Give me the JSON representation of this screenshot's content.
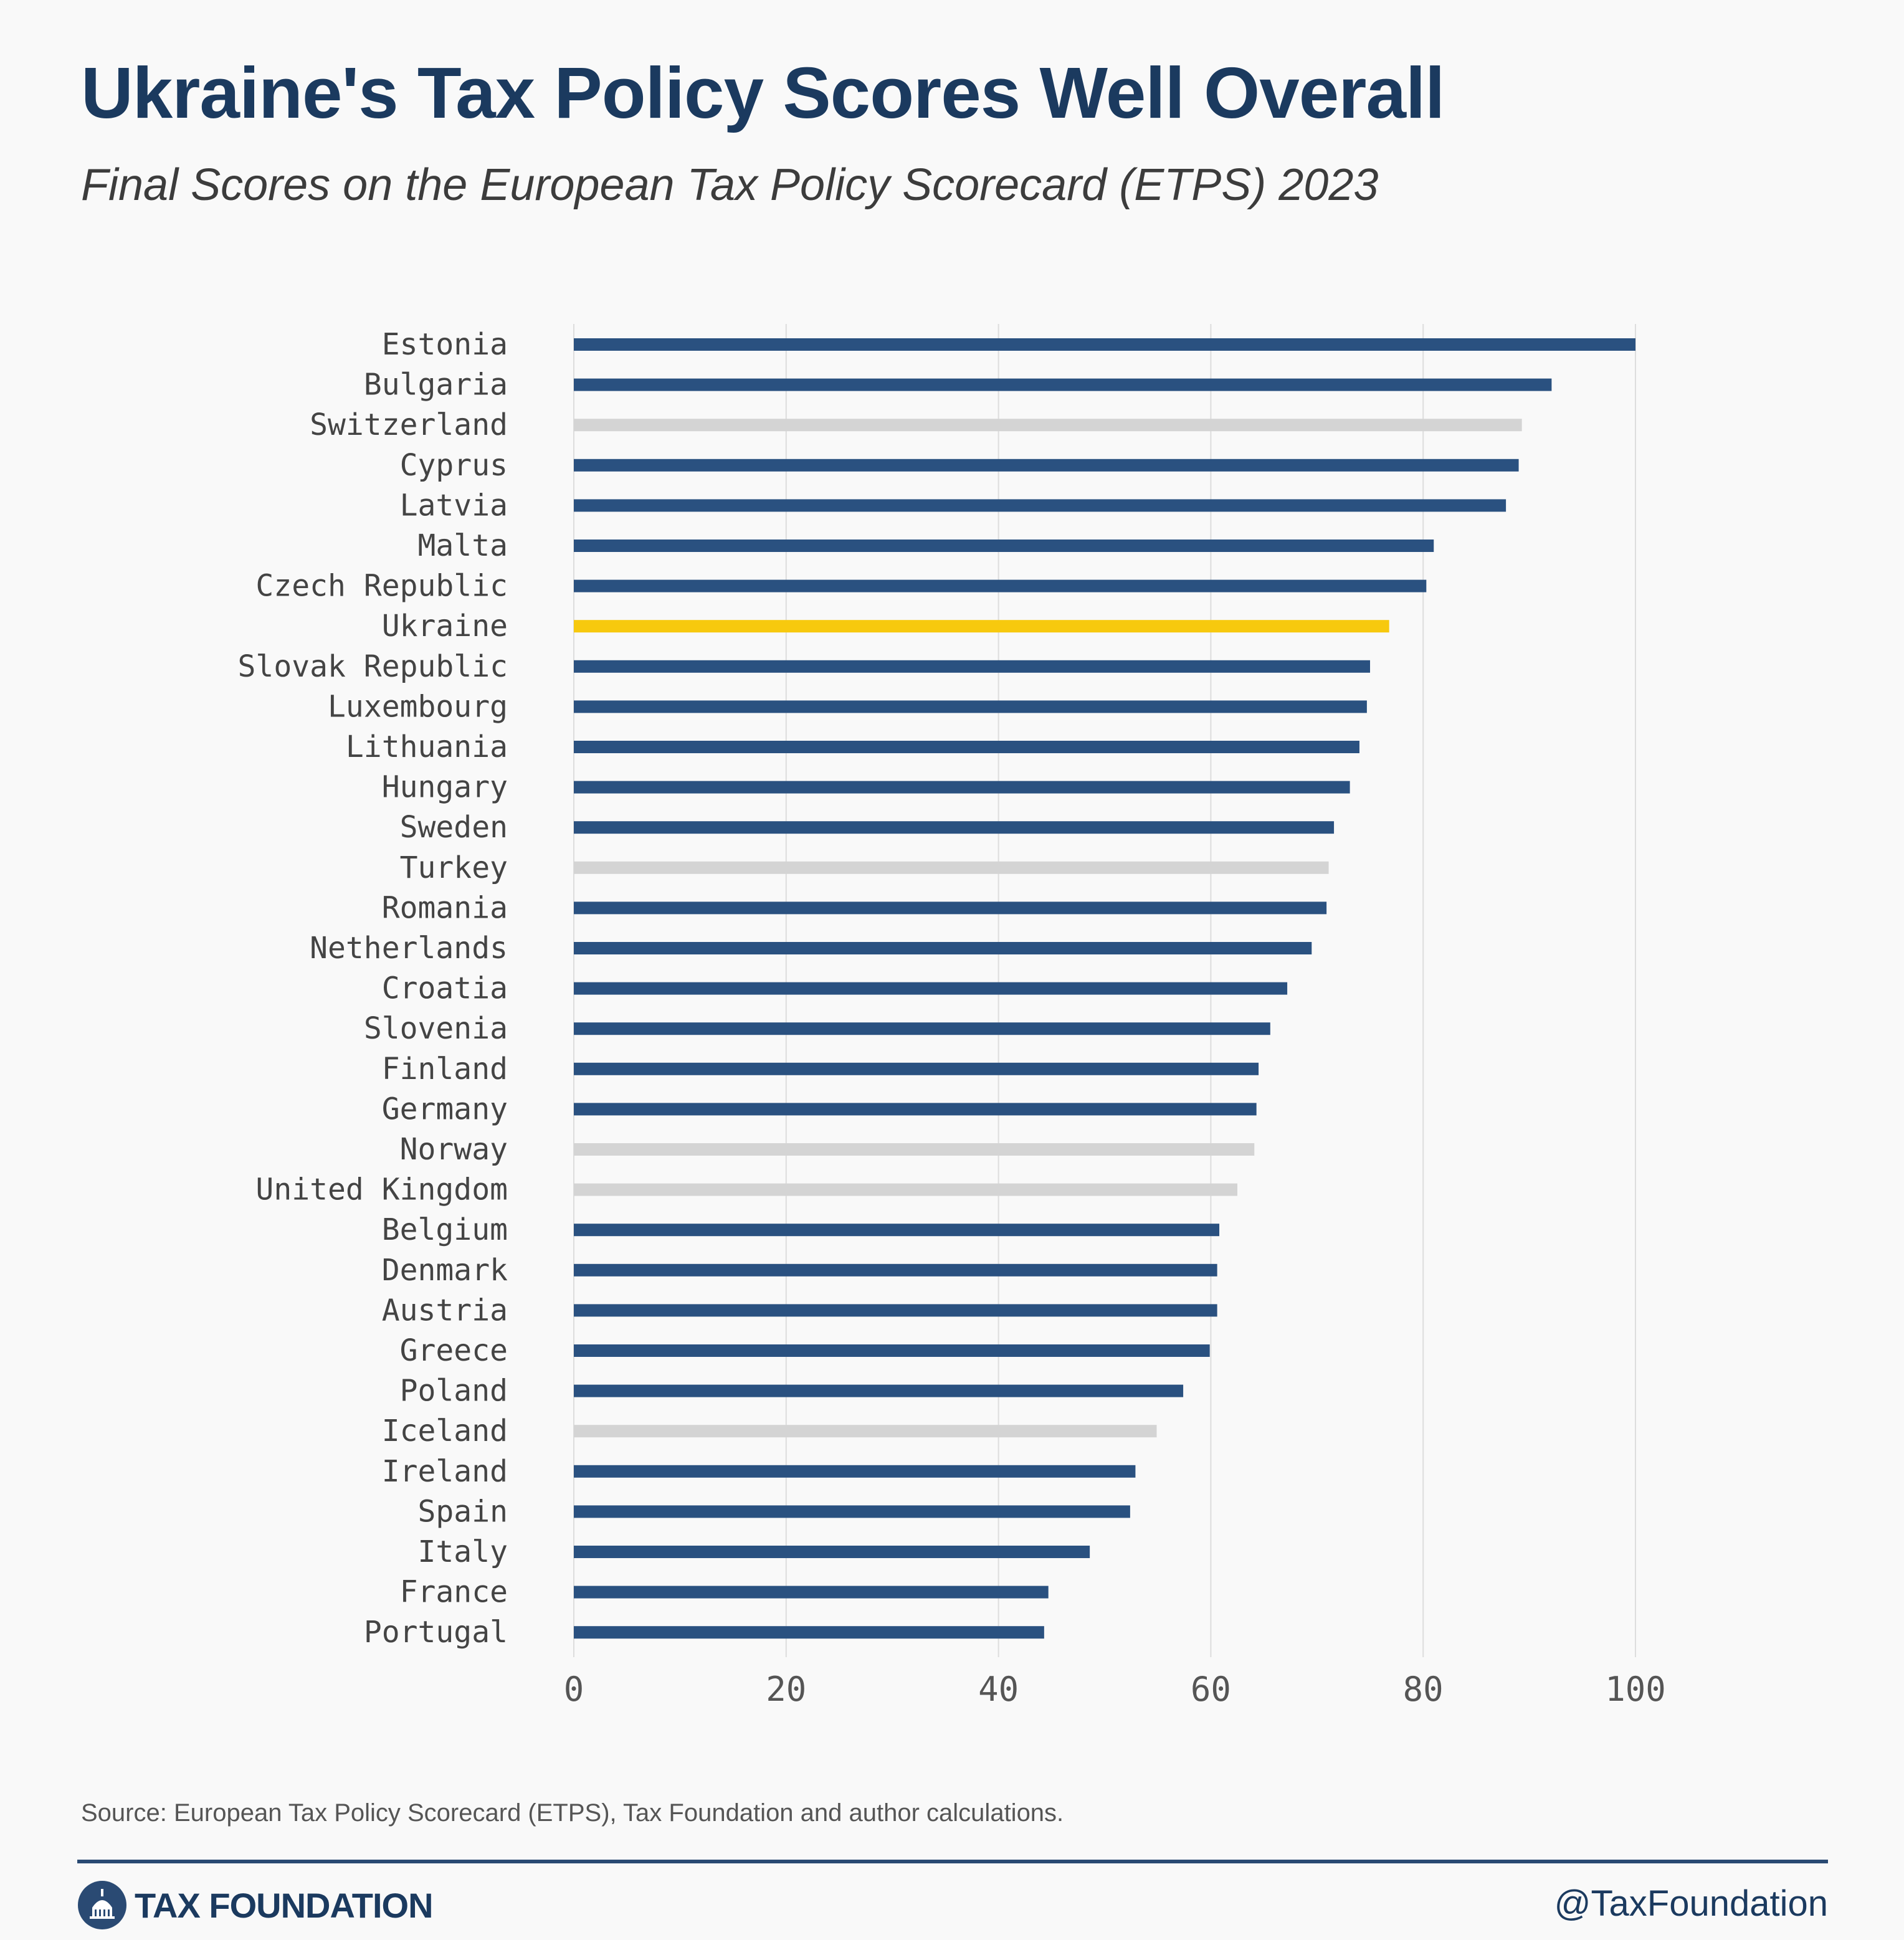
{
  "title": "Ukraine's Tax Policy Scores Well Overall",
  "subtitle": "Final Scores on the European Tax Policy Scorecard (ETPS) 2023",
  "source": "Source: European Tax Policy Scorecard (ETPS), Tax Foundation and author calculations.",
  "brand": {
    "name": "TAX FOUNDATION",
    "icon": "capitol-dome-icon"
  },
  "handle": "@TaxFoundation",
  "colors": {
    "default": "#2a5180",
    "highlight": "#f7c90e",
    "non_eu": "#d4d4d4",
    "grid": "#dddddd"
  },
  "chart_data": {
    "type": "bar",
    "orientation": "horizontal",
    "title": "Ukraine's Tax Policy Scores Well Overall",
    "subtitle": "Final Scores on the European Tax Policy Scorecard (ETPS) 2023",
    "xlim": [
      0,
      100
    ],
    "xticks": [
      0,
      20,
      40,
      60,
      80,
      100
    ],
    "grid": "vertical",
    "categories": [
      "Estonia",
      "Bulgaria",
      "Switzerland",
      "Cyprus",
      "Latvia",
      "Malta",
      "Czech Republic",
      "Ukraine",
      "Slovak Republic",
      "Luxembourg",
      "Lithuania",
      "Hungary",
      "Sweden",
      "Turkey",
      "Romania",
      "Netherlands",
      "Croatia",
      "Slovenia",
      "Finland",
      "Germany",
      "Norway",
      "United Kingdom",
      "Belgium",
      "Denmark",
      "Austria",
      "Greece",
      "Poland",
      "Iceland",
      "Ireland",
      "Spain",
      "Italy",
      "France",
      "Portugal"
    ],
    "values": [
      100,
      92.1,
      89.3,
      89.0,
      87.8,
      81.0,
      80.3,
      76.8,
      75.0,
      74.7,
      74.0,
      73.1,
      71.6,
      71.1,
      70.9,
      69.5,
      67.2,
      65.6,
      64.5,
      64.3,
      64.1,
      62.5,
      60.8,
      60.6,
      60.6,
      59.9,
      57.4,
      54.9,
      52.9,
      52.4,
      48.6,
      44.7,
      44.3
    ],
    "groups": [
      "eu",
      "eu",
      "non_eu",
      "eu",
      "eu",
      "eu",
      "eu",
      "highlight",
      "eu",
      "eu",
      "eu",
      "eu",
      "eu",
      "non_eu",
      "eu",
      "eu",
      "eu",
      "eu",
      "eu",
      "eu",
      "non_eu",
      "non_eu",
      "eu",
      "eu",
      "eu",
      "eu",
      "eu",
      "non_eu",
      "eu",
      "eu",
      "eu",
      "eu",
      "eu"
    ]
  }
}
